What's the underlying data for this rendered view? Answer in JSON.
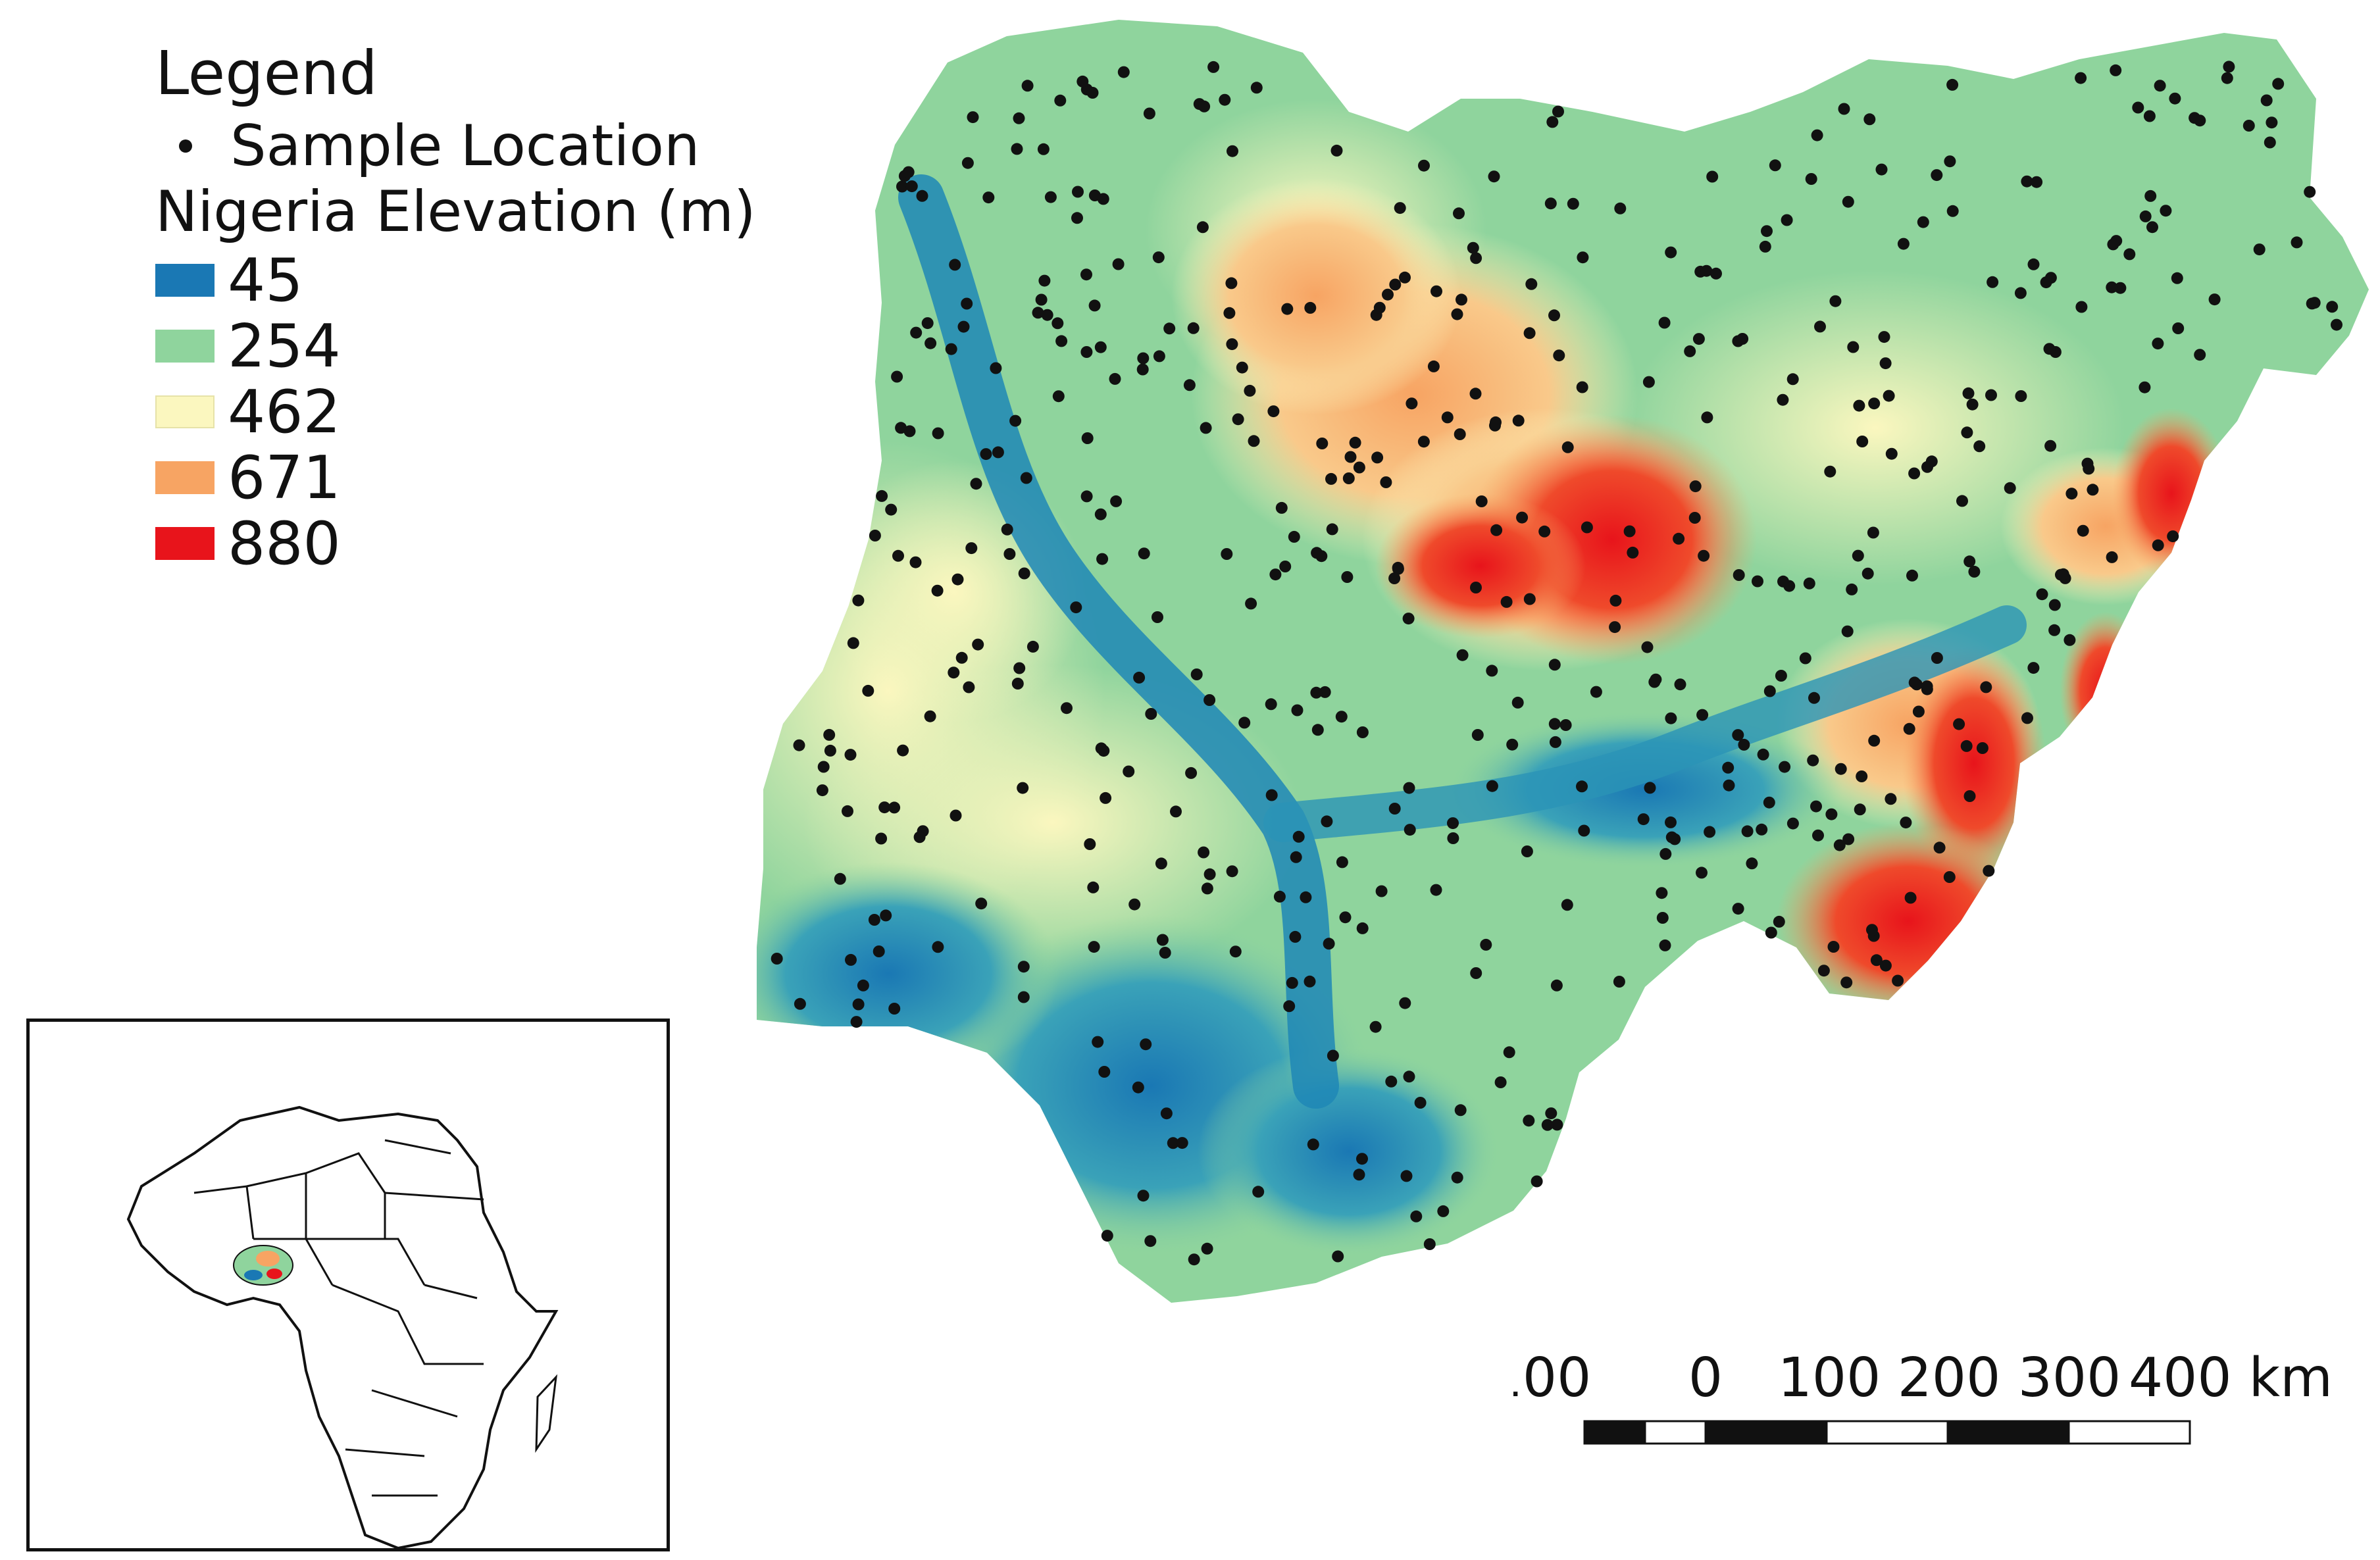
{
  "legend": {
    "title": "Legend",
    "sample_label": "Sample Location",
    "elevation_title": "Nigeria Elevation (m)",
    "classes": [
      {
        "label": "45",
        "color": "#1a78b4"
      },
      {
        "label": "254",
        "color": "#8fd49d"
      },
      {
        "label": "462",
        "color": "#fbf7bf"
      },
      {
        "label": "671",
        "color": "#f7a463"
      },
      {
        "label": "880",
        "color": "#e8141b"
      }
    ]
  },
  "scale": {
    "labels": [
      "100",
      "0",
      "100",
      "200",
      "300",
      "400 km"
    ]
  },
  "colors": {
    "sample_point": "#111111",
    "inset_border": "#111111"
  }
}
